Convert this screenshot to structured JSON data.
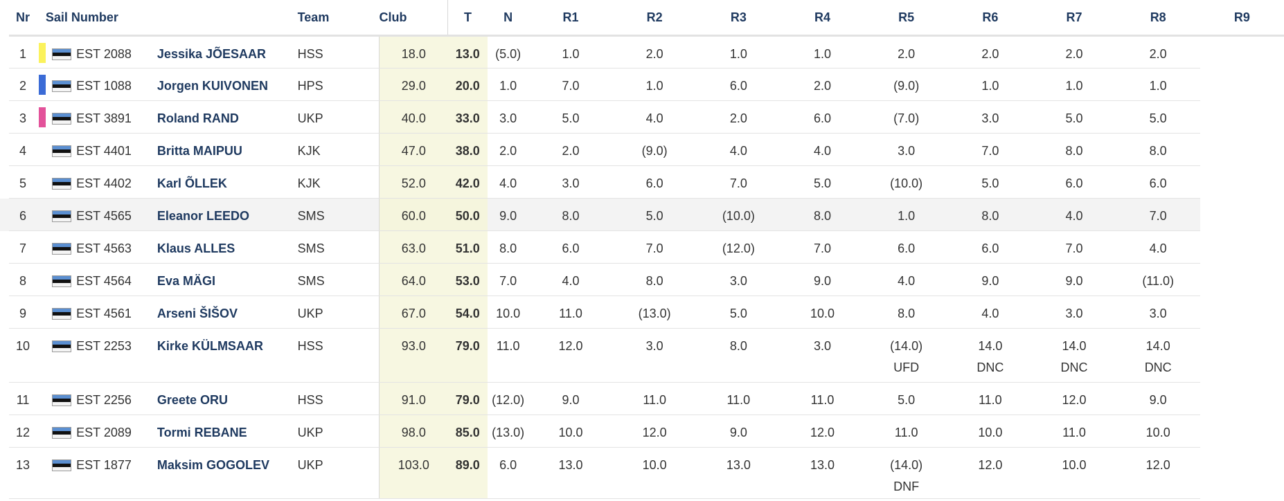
{
  "headers": {
    "nr": "Nr",
    "sail": "Sail Number",
    "team": "Team",
    "club": "Club",
    "t": "T",
    "n": "N",
    "races": [
      "R1",
      "R2",
      "R3",
      "R4",
      "R5",
      "R6",
      "R7",
      "R8",
      "R9"
    ]
  },
  "rows": [
    {
      "nr": "1",
      "color": "#fbf25c",
      "sail": "EST 2088",
      "team": "Jessika JÕESAAR",
      "club": "HSS",
      "t": "18.0",
      "n": "13.0",
      "races": [
        {
          "s": "(5.0)"
        },
        {
          "s": "1.0"
        },
        {
          "s": "2.0"
        },
        {
          "s": "1.0"
        },
        {
          "s": "1.0"
        },
        {
          "s": "2.0"
        },
        {
          "s": "2.0"
        },
        {
          "s": "2.0"
        },
        {
          "s": "2.0"
        }
      ]
    },
    {
      "nr": "2",
      "color": "#3b6bd6",
      "sail": "EST 1088",
      "team": "Jorgen KUIVONEN",
      "club": "HPS",
      "t": "29.0",
      "n": "20.0",
      "races": [
        {
          "s": "1.0"
        },
        {
          "s": "7.0"
        },
        {
          "s": "1.0"
        },
        {
          "s": "6.0"
        },
        {
          "s": "2.0"
        },
        {
          "s": "(9.0)"
        },
        {
          "s": "1.0"
        },
        {
          "s": "1.0"
        },
        {
          "s": "1.0"
        }
      ]
    },
    {
      "nr": "3",
      "color": "#e3529a",
      "sail": "EST 3891",
      "team": "Roland RAND",
      "club": "UKP",
      "t": "40.0",
      "n": "33.0",
      "races": [
        {
          "s": "3.0"
        },
        {
          "s": "5.0"
        },
        {
          "s": "4.0"
        },
        {
          "s": "2.0"
        },
        {
          "s": "6.0"
        },
        {
          "s": "(7.0)"
        },
        {
          "s": "3.0"
        },
        {
          "s": "5.0"
        },
        {
          "s": "5.0"
        }
      ]
    },
    {
      "nr": "4",
      "color": "",
      "sail": "EST 4401",
      "team": "Britta MAIPUU",
      "club": "KJK",
      "t": "47.0",
      "n": "38.0",
      "races": [
        {
          "s": "2.0"
        },
        {
          "s": "2.0"
        },
        {
          "s": "(9.0)"
        },
        {
          "s": "4.0"
        },
        {
          "s": "4.0"
        },
        {
          "s": "3.0"
        },
        {
          "s": "7.0"
        },
        {
          "s": "8.0"
        },
        {
          "s": "8.0"
        }
      ]
    },
    {
      "nr": "5",
      "color": "",
      "sail": "EST 4402",
      "team": "Karl ÕLLEK",
      "club": "KJK",
      "t": "52.0",
      "n": "42.0",
      "races": [
        {
          "s": "4.0"
        },
        {
          "s": "3.0"
        },
        {
          "s": "6.0"
        },
        {
          "s": "7.0"
        },
        {
          "s": "5.0"
        },
        {
          "s": "(10.0)"
        },
        {
          "s": "5.0"
        },
        {
          "s": "6.0"
        },
        {
          "s": "6.0"
        }
      ]
    },
    {
      "nr": "6",
      "color": "",
      "sail": "EST 4565",
      "team": "Eleanor LEEDO",
      "club": "SMS",
      "t": "60.0",
      "n": "50.0",
      "races": [
        {
          "s": "9.0"
        },
        {
          "s": "8.0"
        },
        {
          "s": "5.0"
        },
        {
          "s": "(10.0)"
        },
        {
          "s": "8.0"
        },
        {
          "s": "1.0"
        },
        {
          "s": "8.0"
        },
        {
          "s": "4.0"
        },
        {
          "s": "7.0"
        }
      ]
    },
    {
      "nr": "7",
      "color": "",
      "sail": "EST 4563",
      "team": "Klaus ALLES",
      "club": "SMS",
      "t": "63.0",
      "n": "51.0",
      "races": [
        {
          "s": "8.0"
        },
        {
          "s": "6.0"
        },
        {
          "s": "7.0"
        },
        {
          "s": "(12.0)"
        },
        {
          "s": "7.0"
        },
        {
          "s": "6.0"
        },
        {
          "s": "6.0"
        },
        {
          "s": "7.0"
        },
        {
          "s": "4.0"
        }
      ]
    },
    {
      "nr": "8",
      "color": "",
      "sail": "EST 4564",
      "team": "Eva MÄGI",
      "club": "SMS",
      "t": "64.0",
      "n": "53.0",
      "races": [
        {
          "s": "7.0"
        },
        {
          "s": "4.0"
        },
        {
          "s": "8.0"
        },
        {
          "s": "3.0"
        },
        {
          "s": "9.0"
        },
        {
          "s": "4.0"
        },
        {
          "s": "9.0"
        },
        {
          "s": "9.0"
        },
        {
          "s": "(11.0)"
        }
      ]
    },
    {
      "nr": "9",
      "color": "",
      "sail": "EST 4561",
      "team": "Arseni ŠIŠOV",
      "club": "UKP",
      "t": "67.0",
      "n": "54.0",
      "races": [
        {
          "s": "10.0"
        },
        {
          "s": "11.0"
        },
        {
          "s": "(13.0)"
        },
        {
          "s": "5.0"
        },
        {
          "s": "10.0"
        },
        {
          "s": "8.0"
        },
        {
          "s": "4.0"
        },
        {
          "s": "3.0"
        },
        {
          "s": "3.0"
        }
      ]
    },
    {
      "nr": "10",
      "color": "",
      "sail": "EST 2253",
      "team": "Kirke KÜLMSAAR",
      "club": "HSS",
      "t": "93.0",
      "n": "79.0",
      "races": [
        {
          "s": "11.0"
        },
        {
          "s": "12.0"
        },
        {
          "s": "3.0"
        },
        {
          "s": "8.0"
        },
        {
          "s": "3.0"
        },
        {
          "s": "(14.0)",
          "c": "UFD"
        },
        {
          "s": "14.0",
          "c": "DNC"
        },
        {
          "s": "14.0",
          "c": "DNC"
        },
        {
          "s": "14.0",
          "c": "DNC"
        }
      ]
    },
    {
      "nr": "11",
      "color": "",
      "sail": "EST 2256",
      "team": "Greete ORU",
      "club": "HSS",
      "t": "91.0",
      "n": "79.0",
      "races": [
        {
          "s": "(12.0)"
        },
        {
          "s": "9.0"
        },
        {
          "s": "11.0"
        },
        {
          "s": "11.0"
        },
        {
          "s": "11.0"
        },
        {
          "s": "5.0"
        },
        {
          "s": "11.0"
        },
        {
          "s": "12.0"
        },
        {
          "s": "9.0"
        }
      ]
    },
    {
      "nr": "12",
      "color": "",
      "sail": "EST 2089",
      "team": "Tormi REBANE",
      "club": "UKP",
      "t": "98.0",
      "n": "85.0",
      "races": [
        {
          "s": "(13.0)"
        },
        {
          "s": "10.0"
        },
        {
          "s": "12.0"
        },
        {
          "s": "9.0"
        },
        {
          "s": "12.0"
        },
        {
          "s": "11.0"
        },
        {
          "s": "10.0"
        },
        {
          "s": "11.0"
        },
        {
          "s": "10.0"
        }
      ]
    },
    {
      "nr": "13",
      "color": "",
      "sail": "EST 1877",
      "team": "Maksim GOGOLEV",
      "club": "UKP",
      "t": "103.0",
      "n": "89.0",
      "races": [
        {
          "s": "6.0"
        },
        {
          "s": "13.0"
        },
        {
          "s": "10.0"
        },
        {
          "s": "13.0"
        },
        {
          "s": "13.0"
        },
        {
          "s": "(14.0)",
          "c": "DNF"
        },
        {
          "s": "12.0"
        },
        {
          "s": "10.0"
        },
        {
          "s": "12.0"
        }
      ]
    }
  ],
  "highlight_row": 5
}
